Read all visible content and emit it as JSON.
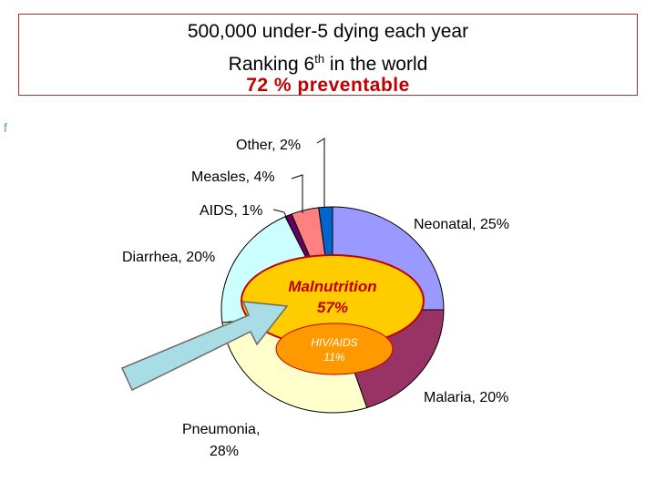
{
  "title": {
    "line1": "500,000 under-5 dying each year",
    "line2_pre": "Ranking 6",
    "line2_sup": "th",
    "line2_post": " in the world",
    "line3": "72 % preventable"
  },
  "side_mark": "f",
  "chart_data": {
    "type": "pie",
    "slices": [
      {
        "label": "Neonatal, 25%",
        "value": 25,
        "color": "#9999ff"
      },
      {
        "label": "Malaria, 20%",
        "value": 20,
        "color": "#993366"
      },
      {
        "label": "Pneumonia, 28%",
        "value": 28,
        "color": "#ffffcc"
      },
      {
        "label": "Diarrhea, 20%",
        "value": 20,
        "color": "#ccffff"
      },
      {
        "label": "AIDS, 1%",
        "value": 1,
        "color": "#660066"
      },
      {
        "label": "Measles, 4%",
        "value": 4,
        "color": "#ff8080"
      },
      {
        "label": "Other, 2%",
        "value": 2,
        "color": "#0066cc"
      }
    ],
    "inner_overlay": {
      "malnutrition_line1": "Malnutrition",
      "malnutrition_line2": "57%",
      "malnutrition_color": "#ffcc00",
      "hiv_line1": "HIV/AIDS",
      "hiv_line2": "11%",
      "hiv_color": "#ff9900"
    }
  }
}
